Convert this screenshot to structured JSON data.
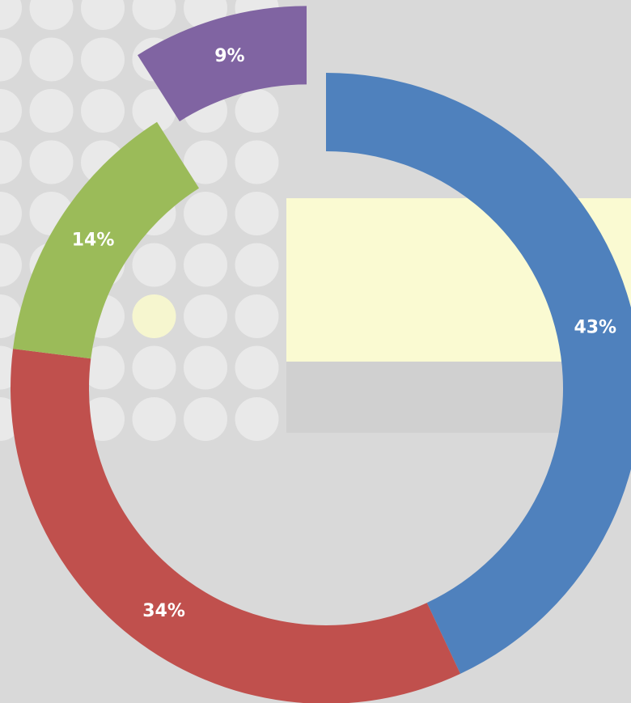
{
  "chart_data": {
    "type": "donut",
    "values": [
      43,
      34,
      14,
      9
    ],
    "value_labels": [
      "43%",
      "34%",
      "14%",
      "9%"
    ],
    "colors": [
      "#4f81bd",
      "#c0504d",
      "#9bbb59",
      "#8064a2"
    ],
    "exploded": [
      false,
      false,
      false,
      true
    ]
  }
}
